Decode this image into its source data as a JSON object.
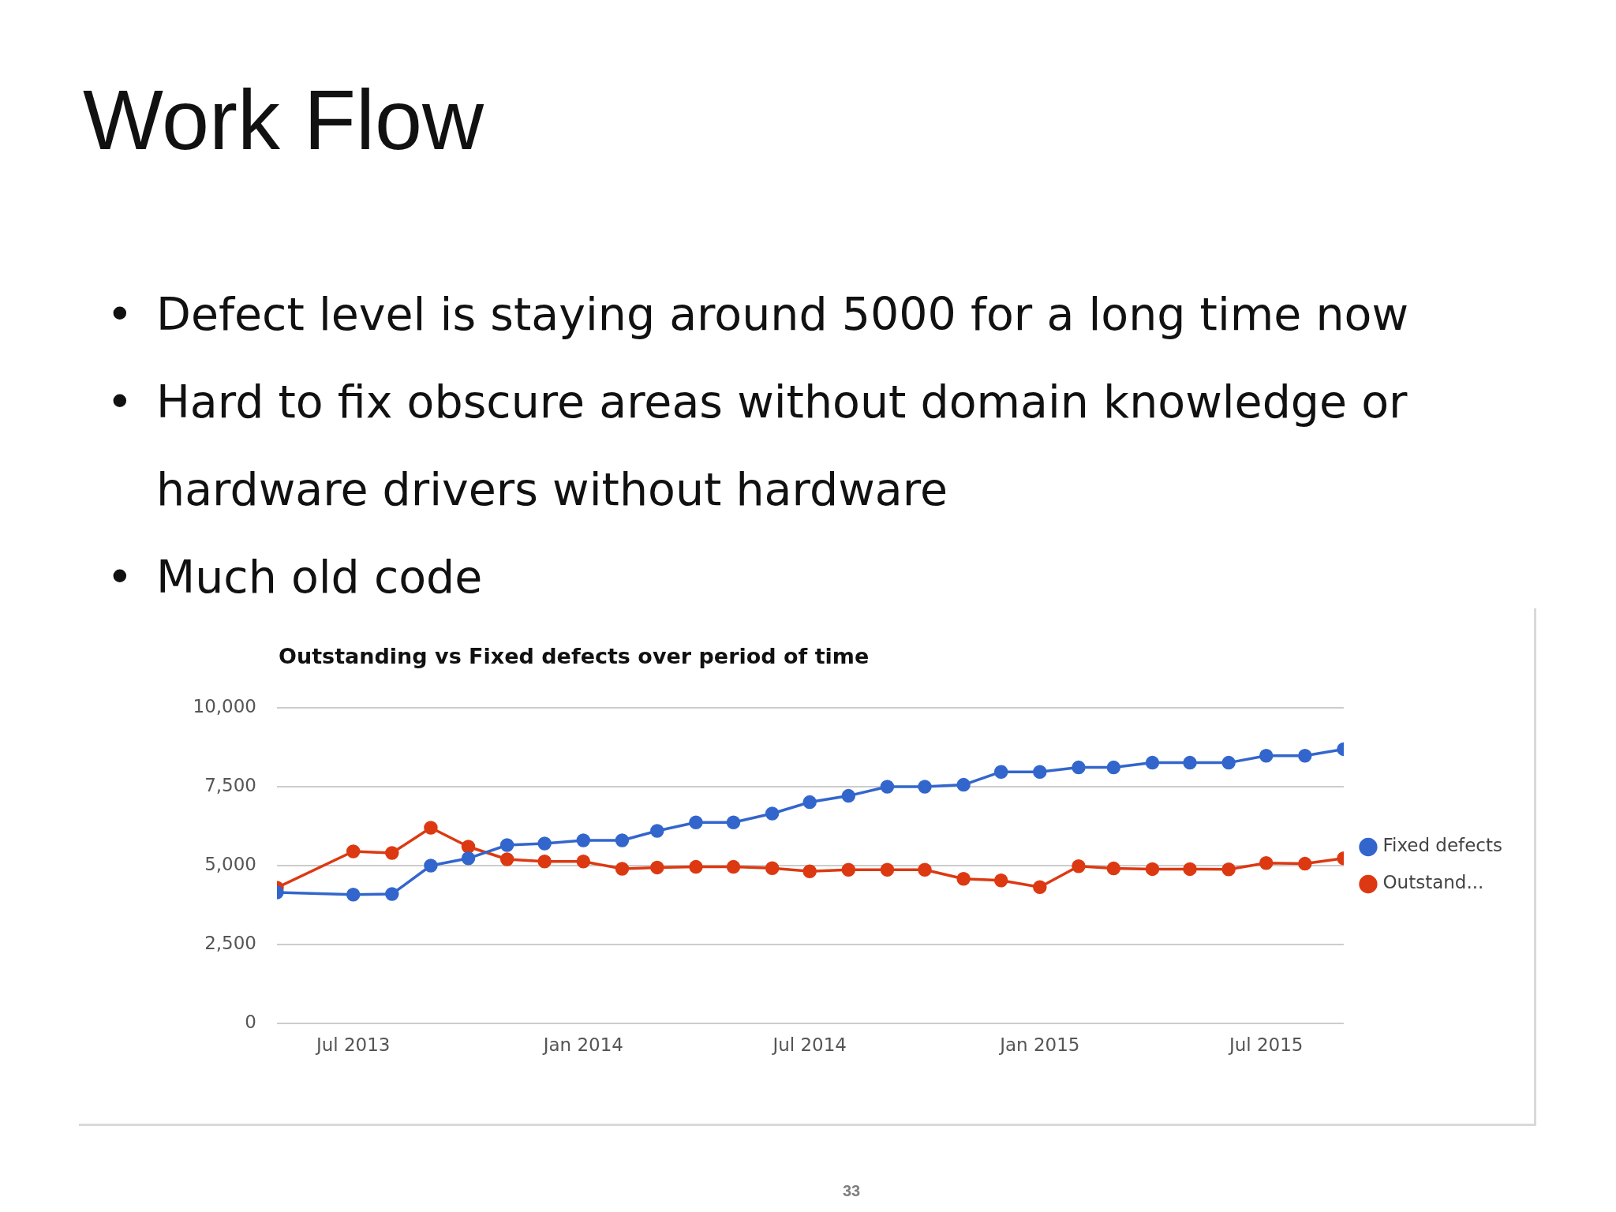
{
  "chart_data": {
    "type": "line",
    "title": "Outstanding vs Fixed defects over period of time",
    "x": [
      "2013-05",
      "2013-07",
      "2013-08",
      "2013-09",
      "2013-10",
      "2013-11",
      "2013-12",
      "2014-01",
      "2014-02",
      "2014-03",
      "2014-04",
      "2014-05",
      "2014-06",
      "2014-07",
      "2014-08",
      "2014-09",
      "2014-10",
      "2014-11",
      "2014-12",
      "2015-01",
      "2015-02",
      "2015-03",
      "2015-04",
      "2015-05",
      "2015-06",
      "2015-07",
      "2015-08",
      "2015-09"
    ],
    "series": [
      {
        "name": "Fixed defects",
        "color": "#3366cc",
        "values": [
          4150,
          4080,
          4100,
          5000,
          5230,
          5650,
          5700,
          5800,
          5800,
          6100,
          6370,
          6370,
          6650,
          7010,
          7210,
          7500,
          7500,
          7560,
          7970,
          7970,
          8110,
          8110,
          8260,
          8260,
          8260,
          8480,
          8480,
          8690
        ]
      },
      {
        "name": "Outstand...",
        "color": "#dc3912",
        "values": [
          4300,
          5450,
          5400,
          6200,
          5600,
          5200,
          5130,
          5130,
          4900,
          4940,
          4960,
          4960,
          4920,
          4820,
          4870,
          4870,
          4870,
          4580,
          4530,
          4320,
          4980,
          4910,
          4890,
          4890,
          4880,
          5080,
          5060,
          5230
        ]
      }
    ],
    "xlim": [
      "2013-05",
      "2015-09"
    ],
    "xticks": [
      {
        "value": "2013-07",
        "label": "Jul 2013"
      },
      {
        "value": "2014-01",
        "label": "Jan 2014"
      },
      {
        "value": "2014-07",
        "label": "Jul 2014"
      },
      {
        "value": "2015-01",
        "label": "Jan 2015"
      },
      {
        "value": "2015-07",
        "label": "Jul 2015"
      }
    ],
    "ylim": [
      0,
      10000
    ],
    "yticks": [
      0,
      {
        "value": 2500,
        "label": "2,500"
      },
      {
        "value": 5000,
        "label": "5,000"
      },
      {
        "value": 7500,
        "label": "7,500"
      },
      {
        "value": 10000,
        "label": "10,000"
      }
    ],
    "grid": "y",
    "legend": "right",
    "marker": "circle",
    "line_style": "solid",
    "annotations": [
      "Work Flow",
      "• Defect level is staying around 5000 for a long time now",
      "• Hard to fix obscure areas without domain knowledge or hardware drivers without hardware",
      "• Much old code",
      "33"
    ]
  }
}
